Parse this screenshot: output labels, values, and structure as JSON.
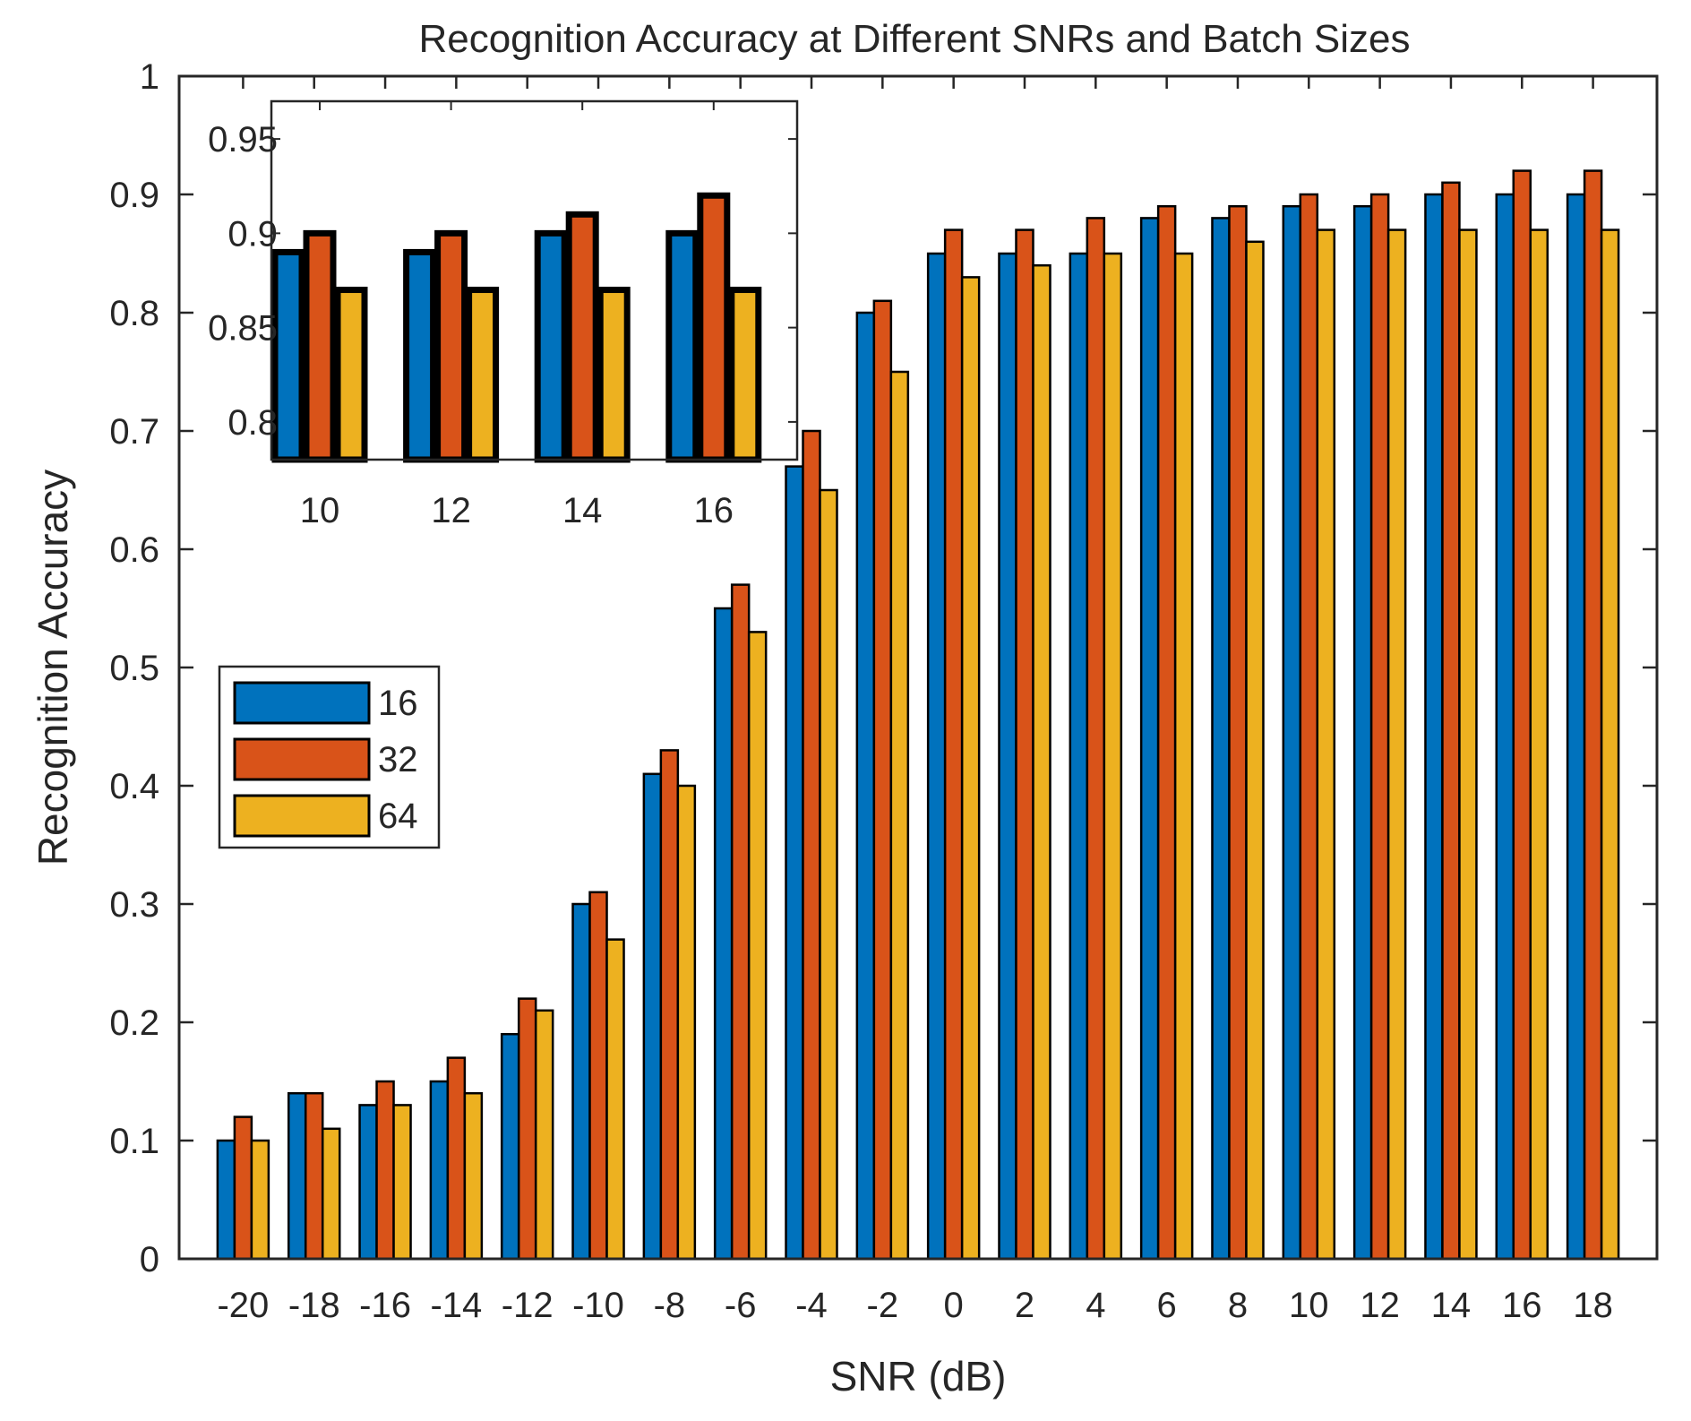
{
  "chart_data": {
    "type": "bar",
    "title": "Recognition Accuracy at Different SNRs and Batch Sizes",
    "xlabel": "SNR (dB)",
    "ylabel": "Recognition Accuracy",
    "ylim": [
      0,
      1
    ],
    "yticks": [
      "0",
      "0.1",
      "0.2",
      "0.3",
      "0.4",
      "0.5",
      "0.6",
      "0.7",
      "0.8",
      "0.9",
      "1"
    ],
    "categories": [
      "-20",
      "-18",
      "-16",
      "-14",
      "-12",
      "-10",
      "-8",
      "-6",
      "-4",
      "-2",
      "0",
      "2",
      "4",
      "6",
      "8",
      "10",
      "12",
      "14",
      "16",
      "18"
    ],
    "series": [
      {
        "name": "16",
        "color": "#0072BD",
        "values": [
          0.1,
          0.14,
          0.13,
          0.15,
          0.19,
          0.3,
          0.41,
          0.55,
          0.67,
          0.8,
          0.85,
          0.85,
          0.85,
          0.88,
          0.88,
          0.89,
          0.89,
          0.9,
          0.9,
          0.9
        ]
      },
      {
        "name": "32",
        "color": "#D95319",
        "values": [
          0.12,
          0.14,
          0.15,
          0.17,
          0.22,
          0.31,
          0.43,
          0.57,
          0.7,
          0.81,
          0.87,
          0.87,
          0.88,
          0.89,
          0.89,
          0.9,
          0.9,
          0.91,
          0.92,
          0.92
        ]
      },
      {
        "name": "64",
        "color": "#EDB120",
        "values": [
          0.1,
          0.11,
          0.13,
          0.14,
          0.21,
          0.27,
          0.4,
          0.53,
          0.65,
          0.75,
          0.83,
          0.84,
          0.85,
          0.85,
          0.86,
          0.87,
          0.87,
          0.87,
          0.87,
          0.87
        ]
      }
    ],
    "legend": {
      "location": "center-left",
      "entries": [
        "16",
        "32",
        "64"
      ]
    },
    "inset": {
      "categories": [
        "10",
        "12",
        "14",
        "16"
      ],
      "ylim": [
        0.78,
        0.97
      ],
      "yticks": [
        "0.8",
        "0.85",
        "0.9",
        "0.95"
      ],
      "series": [
        {
          "name": "16",
          "values": [
            0.89,
            0.89,
            0.9,
            0.9
          ]
        },
        {
          "name": "32",
          "values": [
            0.9,
            0.9,
            0.91,
            0.92
          ]
        },
        {
          "name": "64",
          "values": [
            0.87,
            0.87,
            0.87,
            0.87
          ]
        }
      ],
      "location": "top-left"
    }
  }
}
